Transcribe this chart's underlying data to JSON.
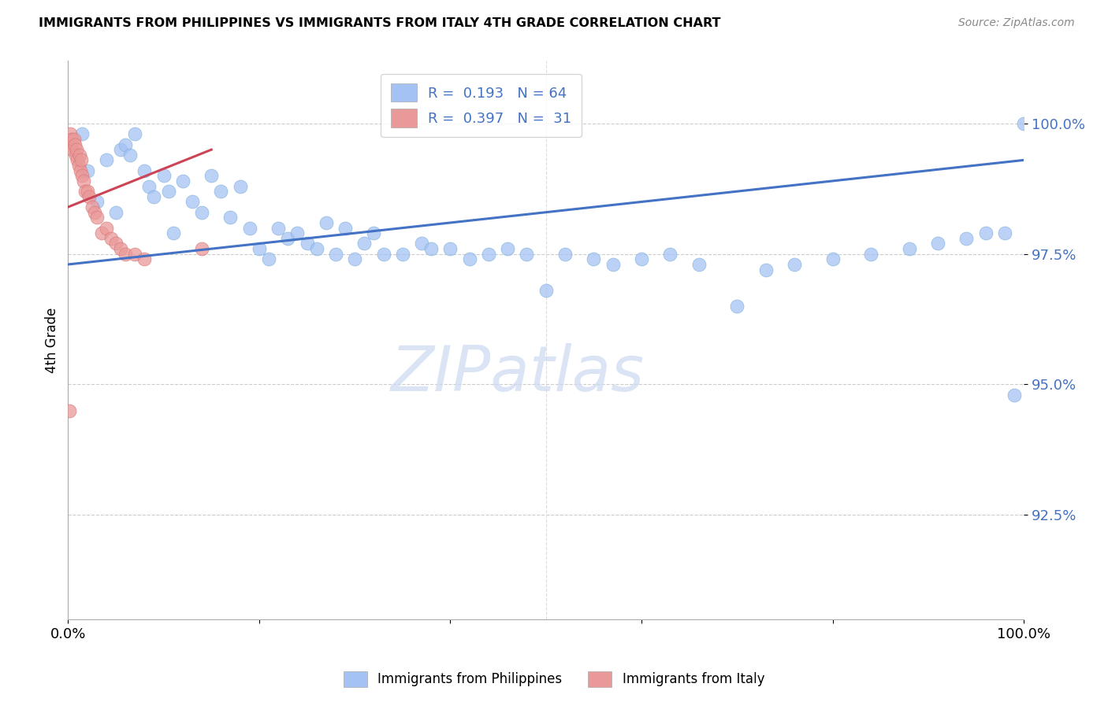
{
  "title": "IMMIGRANTS FROM PHILIPPINES VS IMMIGRANTS FROM ITALY 4TH GRADE CORRELATION CHART",
  "source": "Source: ZipAtlas.com",
  "ylabel": "4th Grade",
  "watermark": "ZIPatlas",
  "legend_blue_label": "Immigrants from Philippines",
  "legend_pink_label": "Immigrants from Italy",
  "R_blue": 0.193,
  "N_blue": 64,
  "R_pink": 0.397,
  "N_pink": 31,
  "ytick_labels": [
    "92.5%",
    "95.0%",
    "97.5%",
    "100.0%"
  ],
  "ytick_values": [
    92.5,
    95.0,
    97.5,
    100.0
  ],
  "xlim": [
    0.0,
    100.0
  ],
  "ylim": [
    90.5,
    101.2
  ],
  "blue_scatter_color": "#a4c2f4",
  "pink_scatter_color": "#ea9999",
  "trendline_blue": "#4472c4",
  "trendline_pink": "#cc4455",
  "blue_points_x": [
    1.5,
    2.0,
    3.0,
    4.0,
    5.0,
    5.5,
    6.0,
    6.5,
    7.0,
    8.0,
    8.5,
    9.0,
    10.0,
    10.5,
    11.0,
    12.0,
    13.0,
    14.0,
    15.0,
    16.0,
    17.0,
    18.0,
    19.0,
    20.0,
    21.0,
    22.0,
    23.0,
    24.0,
    25.0,
    26.0,
    27.0,
    28.0,
    29.0,
    30.0,
    31.0,
    32.0,
    33.0,
    35.0,
    37.0,
    38.0,
    40.0,
    42.0,
    44.0,
    46.0,
    48.0,
    50.0,
    52.0,
    55.0,
    57.0,
    60.0,
    63.0,
    66.0,
    70.0,
    73.0,
    76.0,
    80.0,
    84.0,
    88.0,
    91.0,
    94.0,
    96.0,
    98.0,
    99.0,
    100.0
  ],
  "blue_points_y": [
    99.8,
    99.1,
    98.5,
    99.3,
    98.3,
    99.5,
    99.6,
    99.4,
    99.8,
    99.1,
    98.8,
    98.6,
    99.0,
    98.7,
    97.9,
    98.9,
    98.5,
    98.3,
    99.0,
    98.7,
    98.2,
    98.8,
    98.0,
    97.6,
    97.4,
    98.0,
    97.8,
    97.9,
    97.7,
    97.6,
    98.1,
    97.5,
    98.0,
    97.4,
    97.7,
    97.9,
    97.5,
    97.5,
    97.7,
    97.6,
    97.6,
    97.4,
    97.5,
    97.6,
    97.5,
    96.8,
    97.5,
    97.4,
    97.3,
    97.4,
    97.5,
    97.3,
    96.5,
    97.2,
    97.3,
    97.4,
    97.5,
    97.6,
    97.7,
    97.8,
    97.9,
    97.9,
    94.8,
    100.0
  ],
  "pink_points_x": [
    0.2,
    0.3,
    0.4,
    0.5,
    0.6,
    0.7,
    0.8,
    0.9,
    1.0,
    1.1,
    1.2,
    1.3,
    1.4,
    1.5,
    1.6,
    1.8,
    2.0,
    2.2,
    2.5,
    2.8,
    3.0,
    3.5,
    4.0,
    4.5,
    5.0,
    5.5,
    6.0,
    7.0,
    8.0,
    14.0,
    0.15
  ],
  "pink_points_y": [
    99.8,
    99.6,
    99.7,
    99.5,
    99.7,
    99.6,
    99.4,
    99.5,
    99.3,
    99.2,
    99.4,
    99.1,
    99.3,
    99.0,
    98.9,
    98.7,
    98.7,
    98.6,
    98.4,
    98.3,
    98.2,
    97.9,
    98.0,
    97.8,
    97.7,
    97.6,
    97.5,
    97.5,
    97.4,
    97.6,
    94.5
  ],
  "blue_trend_x": [
    0,
    100
  ],
  "blue_trend_y": [
    97.3,
    99.3
  ],
  "pink_trend_x": [
    0,
    15
  ],
  "pink_trend_y": [
    98.4,
    99.5
  ]
}
